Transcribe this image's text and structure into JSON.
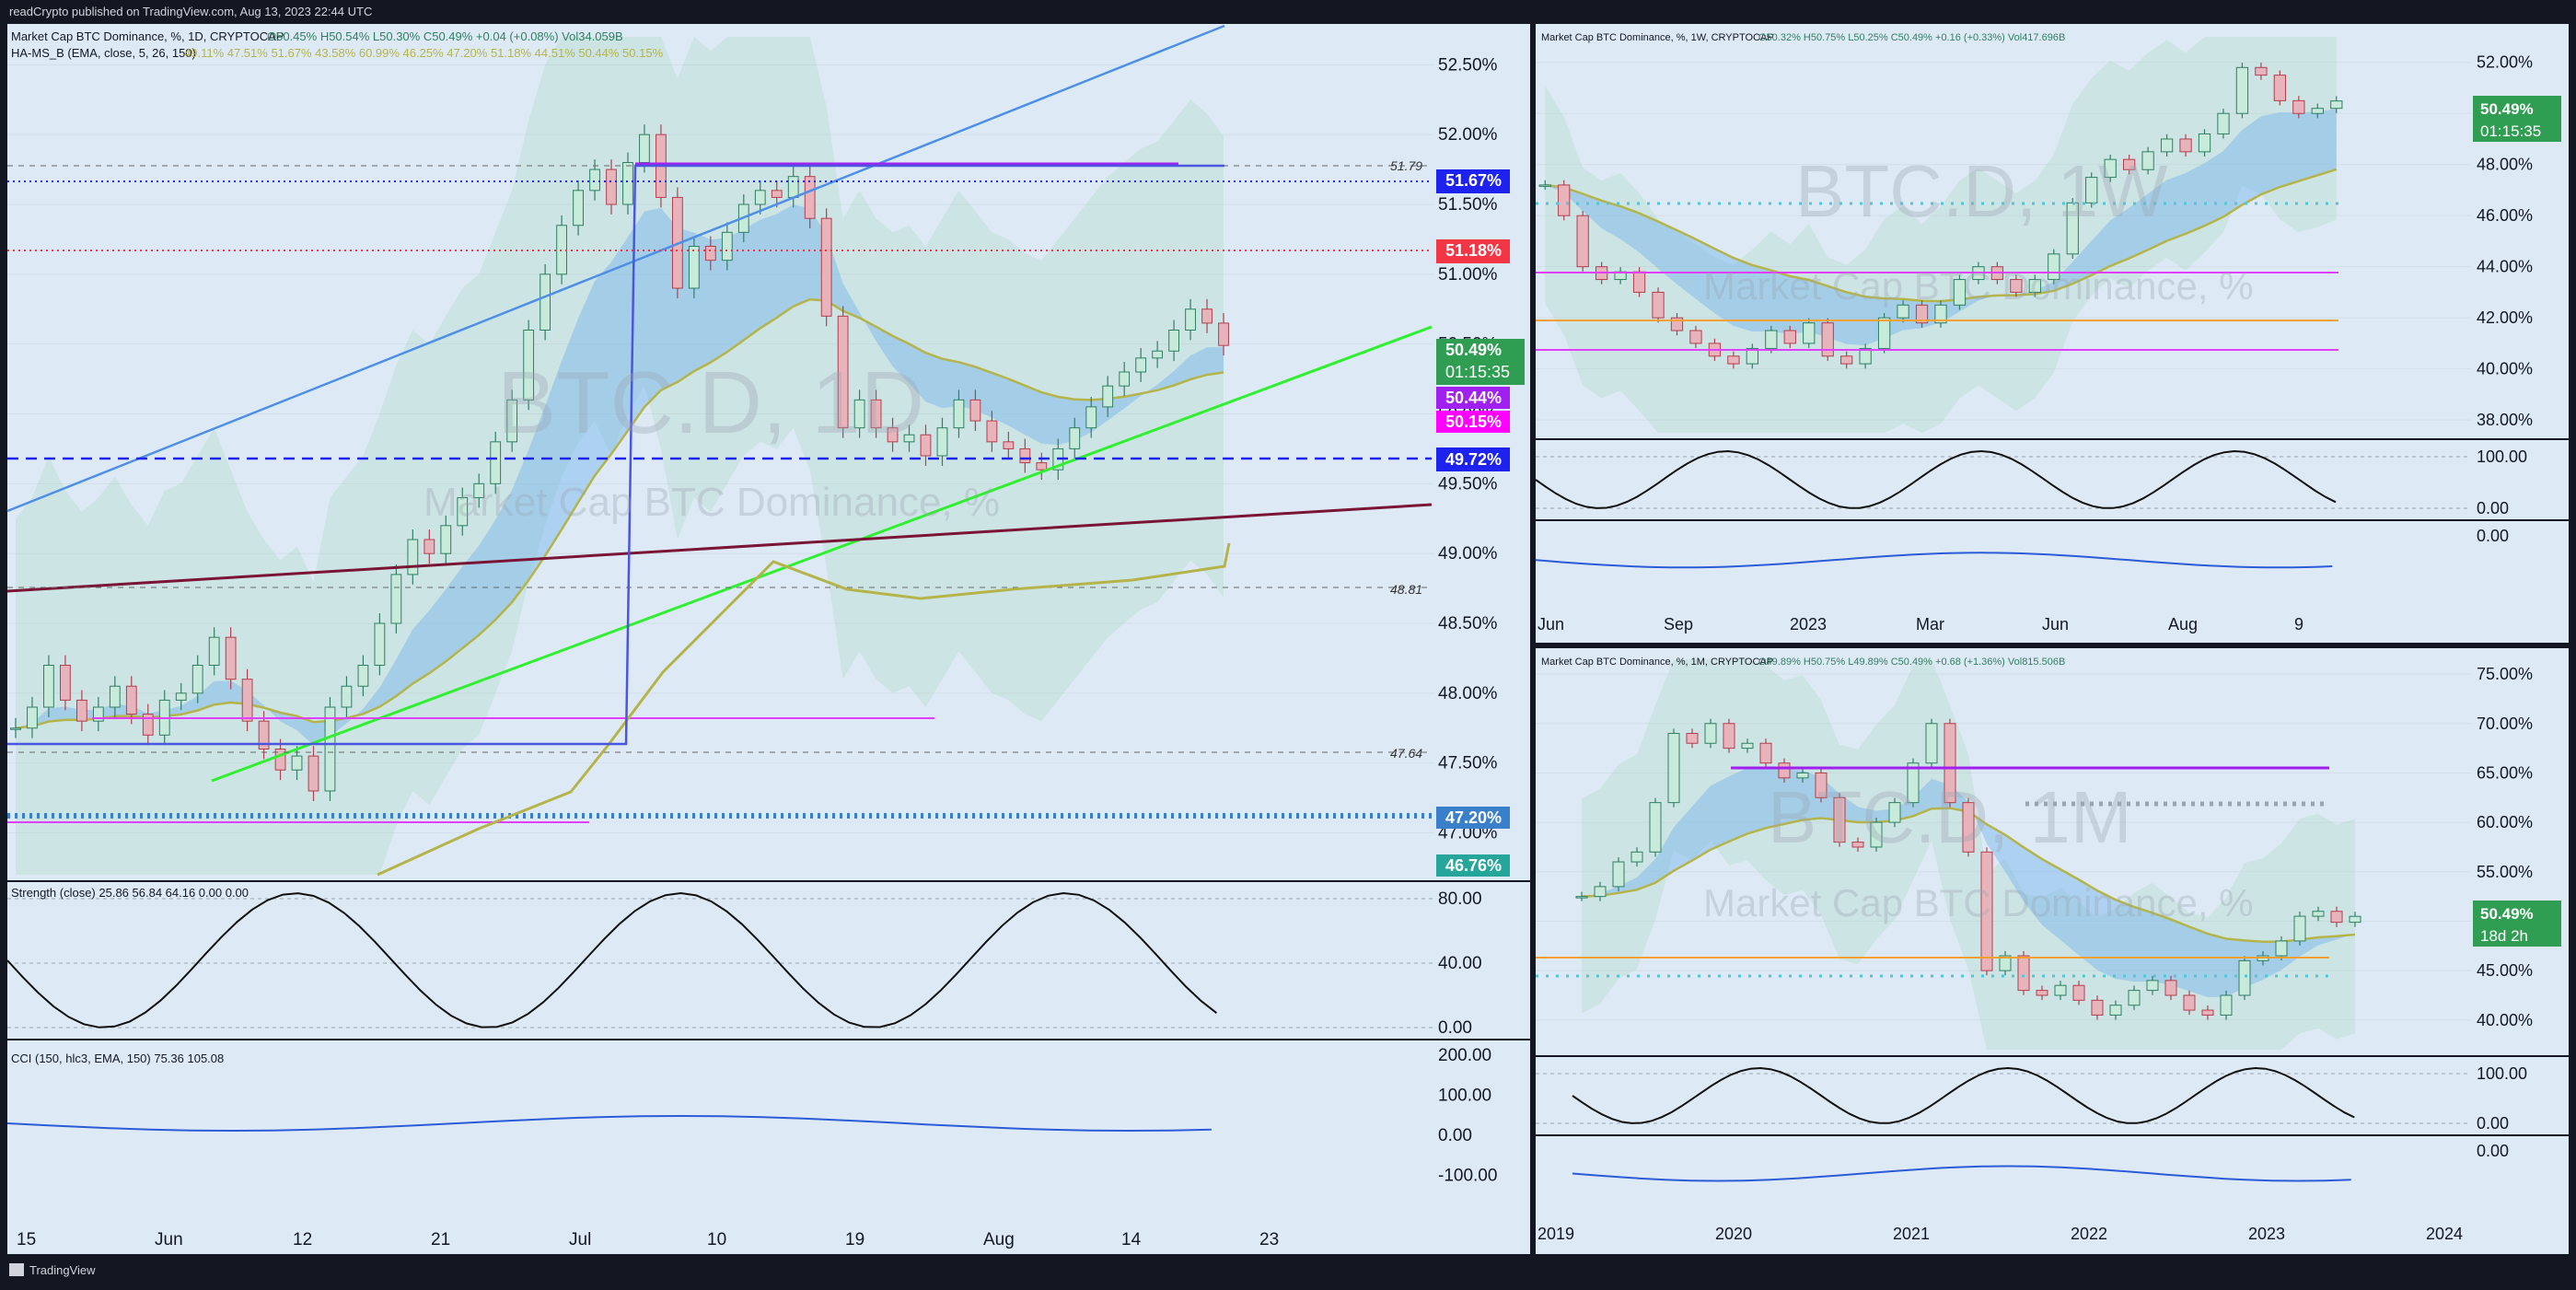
{
  "header": {
    "publisher": "readCrypto published on TradingView.com, Aug 13, 2023 22:44 UTC"
  },
  "footer": {
    "logo_text": "TradingView"
  },
  "colors": {
    "bg": "#131722",
    "pane": "#ddeaf5",
    "up": "#2f7f63",
    "down": "#b23f4d",
    "blue": "#1e22ee",
    "red": "#f23645",
    "magenta": "#e040fb",
    "green_line": "#2ef02e",
    "trend_blue": "#4d8fe8",
    "maroon": "#7a1535",
    "olive": "#b5b44a",
    "cyan": "#4ec7d9"
  },
  "panels": {
    "daily": {
      "legend1": "Market Cap BTC Dominance, %, 1D, CRYPTOCAP",
      "ohlc": "O50.45% H50.54% L50.30% C50.49% +0.04 (+0.08%) Vol34.059B",
      "legend2": "HA-MS_B (EMA, close, 5, 26, 150)",
      "legend2_values": "49.11% 47.51% 51.67% 43.58% 60.99% 46.25% 47.20% 51.18% 44.51% 50.44% 50.15%",
      "watermark": "BTC.D, 1D",
      "watermark_sub": "Market Cap BTC Dominance, %",
      "strength_legend": "Strength (close) 25.86 56.84 64.16 0.00 0.00",
      "cci_legend": "CCI (150, hlc3, EMA, 150) 75.36 105.08",
      "tag_blue_top": "51.67%",
      "tag_red": "51.18%",
      "tag_price": "50.49%",
      "tag_time": "01:15:35",
      "tag_mag1": "50.44%",
      "tag_mag2": "50.15%",
      "tag_blue_mid": "49.72%",
      "tag_low_blue": "47.20%",
      "tag_teal": "46.76%",
      "label_5179": "51.79",
      "label_4881": "48.81",
      "label_4764": "47.64"
    },
    "weekly": {
      "legend1": "Market Cap BTC Dominance, %, 1W, CRYPTOCAP",
      "ohlc": "O50.32% H50.75% L50.25% C50.49% +0.16 (+0.33%) Vol417.696B",
      "watermark": "BTC.D, 1W",
      "watermark_sub": "Market Cap BTC Dominance, %",
      "tag_price": "50.49%",
      "tag_time": "01:15:35"
    },
    "monthly": {
      "legend1": "Market Cap BTC Dominance, %, 1M, CRYPTOCAP",
      "ohlc": "O49.89% H50.75% L49.89% C50.49% +0.68 (+1.36%) Vol815.506B",
      "watermark": "BTC.D, 1M",
      "watermark_sub": "Market Cap BTC Dominance, %",
      "tag_price": "50.49%",
      "tag_time": "18d 2h"
    }
  },
  "chart_data": [
    {
      "type": "candlestick",
      "title": "Market Cap BTC Dominance, %, 1D",
      "ylim": [
        46.7,
        52.7
      ],
      "yticks": [
        "52.50%",
        "52.00%",
        "51.50%",
        "51.00%",
        "50.50%",
        "50.00%",
        "49.50%",
        "49.00%",
        "48.50%",
        "48.00%",
        "47.50%",
        "47.00%"
      ],
      "xticks": [
        "15",
        "Jun",
        "12",
        "21",
        "Jul",
        "10",
        "19",
        "Aug",
        "14",
        "23"
      ],
      "close_path": [
        47.75,
        47.9,
        48.2,
        47.95,
        47.8,
        47.9,
        48.05,
        47.85,
        47.7,
        47.95,
        48.0,
        48.2,
        48.4,
        48.1,
        47.8,
        47.6,
        47.45,
        47.55,
        47.3,
        47.9,
        48.05,
        48.2,
        48.5,
        48.85,
        49.1,
        49.0,
        49.2,
        49.4,
        49.5,
        49.8,
        50.1,
        50.6,
        51.0,
        51.35,
        51.6,
        51.75,
        51.5,
        51.8,
        52.0,
        51.55,
        50.9,
        51.2,
        51.1,
        51.3,
        51.5,
        51.6,
        51.55,
        51.7,
        51.4,
        50.7,
        49.9,
        50.1,
        49.9,
        49.8,
        49.85,
        49.7,
        49.9,
        50.1,
        49.95,
        49.8,
        49.75,
        49.65,
        49.6,
        49.75,
        49.9,
        50.05,
        50.2,
        50.3,
        50.4,
        50.45,
        50.6,
        50.75,
        50.65,
        50.49
      ],
      "strength_yticks": [
        "80.00",
        "40.00",
        "0.00"
      ],
      "cci_yticks": [
        "200.00",
        "100.00",
        "0.00",
        "-100.00"
      ]
    },
    {
      "type": "candlestick",
      "title": "Market Cap BTC Dominance, %, 1W",
      "ylim": [
        37.5,
        53.0
      ],
      "yticks": [
        "52.00%",
        "50.00%",
        "48.00%",
        "46.00%",
        "44.00%",
        "42.00%",
        "40.00%",
        "38.00%"
      ],
      "xticks": [
        "Jun",
        "Sep",
        "2023",
        "Mar",
        "Jun",
        "Aug",
        "9"
      ],
      "close_path": [
        47.2,
        46.0,
        44.0,
        43.5,
        43.8,
        43.0,
        42.0,
        41.5,
        41.0,
        40.5,
        40.2,
        40.8,
        41.5,
        41.0,
        41.8,
        40.5,
        40.2,
        40.8,
        42.0,
        42.5,
        41.8,
        42.5,
        43.5,
        44.0,
        43.5,
        43.0,
        43.5,
        44.5,
        46.5,
        47.5,
        48.2,
        47.8,
        48.5,
        49.0,
        48.5,
        49.2,
        50.0,
        51.8,
        51.5,
        50.5,
        50.0,
        50.2,
        50.49
      ],
      "strength_yticks": [
        "100.00",
        "0.00"
      ],
      "cci_yticks": [
        "0.00"
      ]
    },
    {
      "type": "candlestick",
      "title": "Market Cap BTC Dominance, %, 1M",
      "ylim": [
        37.0,
        76.5
      ],
      "yticks": [
        "75.00%",
        "70.00%",
        "65.00%",
        "60.00%",
        "55.00%",
        "50.00%",
        "45.00%",
        "40.00%"
      ],
      "xticks": [
        "2019",
        "2020",
        "2021",
        "2022",
        "2023",
        "2024"
      ],
      "close_path": [
        52.5,
        53.5,
        56.0,
        57.0,
        62.0,
        69.0,
        68.0,
        70.0,
        67.5,
        68.0,
        66.0,
        64.5,
        65.0,
        62.5,
        58.0,
        57.5,
        60.0,
        62.0,
        66.0,
        70.0,
        62.0,
        57.0,
        45.0,
        46.5,
        43.0,
        42.5,
        43.5,
        42.0,
        40.5,
        41.5,
        43.0,
        44.0,
        42.5,
        41.0,
        40.5,
        42.5,
        46.0,
        46.5,
        48.0,
        50.5,
        51.0,
        49.89,
        50.49
      ],
      "strength_yticks": [
        "100.00",
        "0.00"
      ],
      "cci_yticks": [
        "0.00"
      ]
    }
  ]
}
